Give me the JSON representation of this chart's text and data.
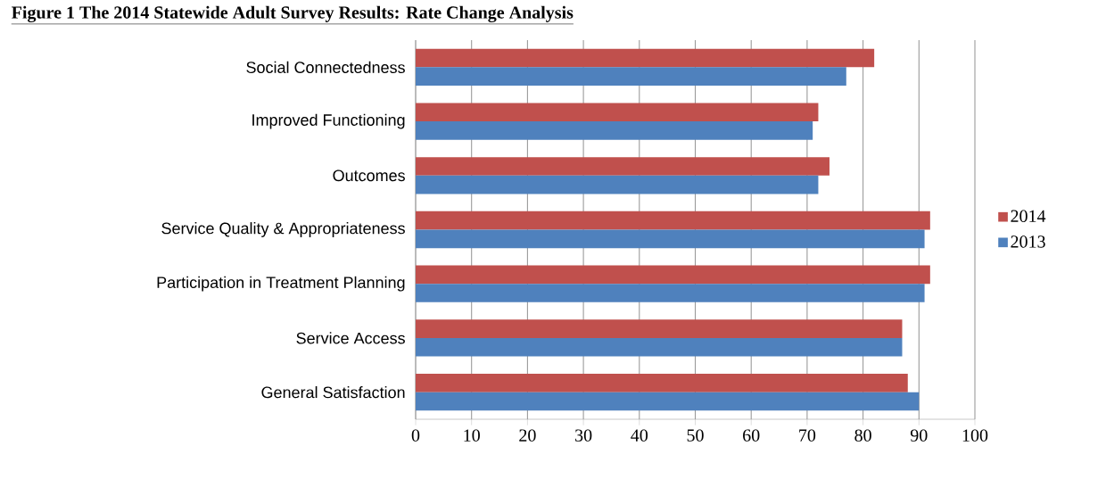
{
  "chart_data": {
    "type": "bar",
    "orientation": "horizontal",
    "title": "Figure 1 The 2014 Statewide Adult Survey Results: Rate Change Analysis",
    "categories": [
      "Social Connectedness",
      "Improved Functioning",
      "Outcomes",
      "Service Quality & Appropriateness",
      "Participation in Treatment Planning",
      "Service Access",
      "General Satisfaction"
    ],
    "series": [
      {
        "name": "2014",
        "color": "#c0504d",
        "values": [
          82,
          72,
          74,
          92,
          92,
          87,
          88
        ]
      },
      {
        "name": "2013",
        "color": "#4f81bd",
        "values": [
          77,
          71,
          72,
          91,
          91,
          87,
          90
        ]
      }
    ],
    "xlim": [
      0,
      100
    ],
    "xticks": [
      0,
      10,
      20,
      30,
      40,
      50,
      60,
      70,
      80,
      90,
      100
    ],
    "grid": "x",
    "legend": "right"
  }
}
